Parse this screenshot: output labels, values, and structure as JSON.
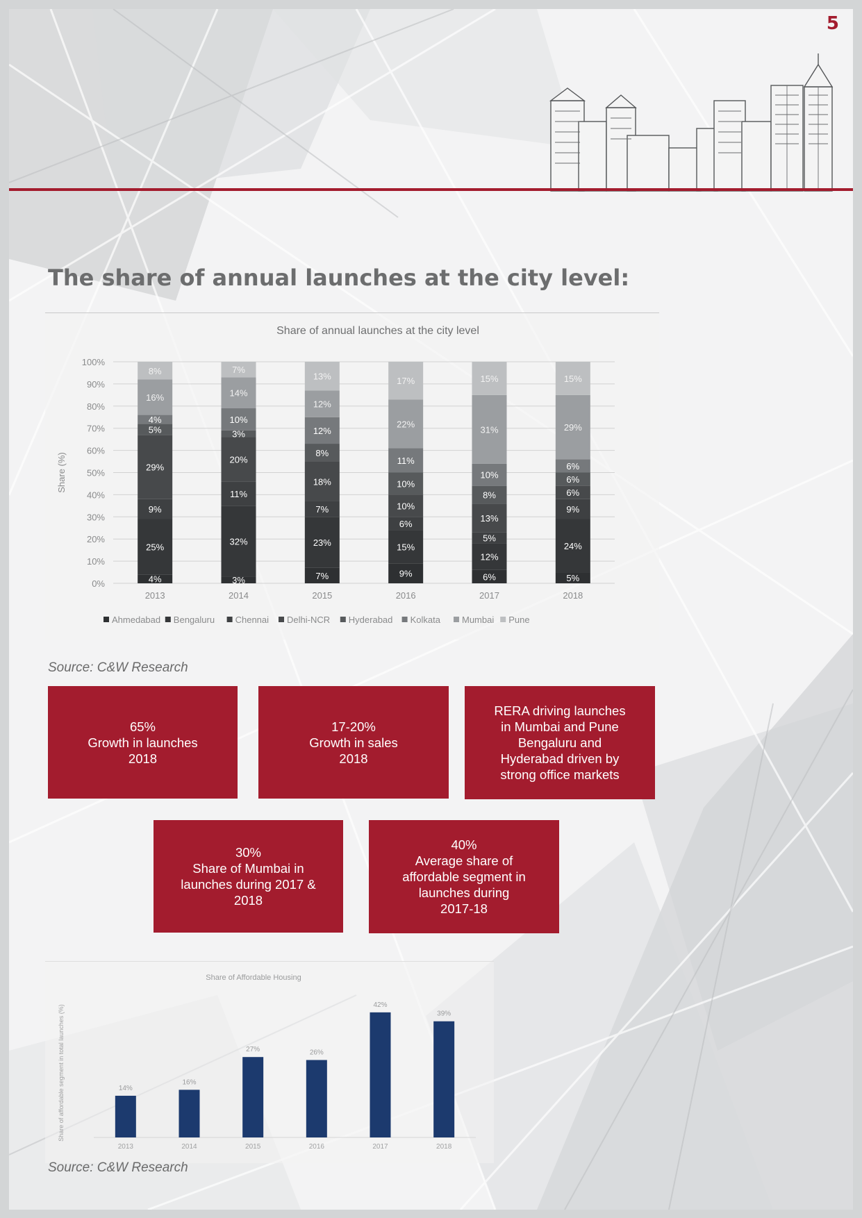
{
  "page": {
    "number": "5"
  },
  "heading": "The share of annual launches at the city level:",
  "source_1": "Source: C&W Research",
  "source_2": "Source: C&W Research",
  "highlights": [
    {
      "lines": [
        "65%",
        "Growth in launches",
        "2018"
      ]
    },
    {
      "lines": [
        "17-20%",
        "Growth in sales",
        "2018"
      ]
    },
    {
      "lines": [
        "RERA driving launches",
        "in Mumbai and Pune",
        "Bengaluru and",
        "Hyderabad driven by",
        "strong office markets"
      ]
    },
    {
      "lines": [
        "30%",
        "Share of Mumbai in",
        "launches during 2017 &",
        "2018"
      ]
    },
    {
      "lines": [
        "40%",
        "Average share of",
        "affordable segment in",
        "launches during",
        "2017-18"
      ]
    }
  ],
  "colors": {
    "accent": "#a31c2e",
    "bar_blue": "#1c3a6e"
  },
  "chart_data": [
    {
      "type": "bar",
      "stacked": true,
      "title": "Share of annual launches at the city level",
      "ylabel": "Share (%)",
      "ylim": [
        0,
        100
      ],
      "yticks": [
        "0%",
        "10%",
        "20%",
        "30%",
        "40%",
        "50%",
        "60%",
        "70%",
        "80%",
        "90%",
        "100%"
      ],
      "categories": [
        "2013",
        "2014",
        "2015",
        "2016",
        "2017",
        "2018"
      ],
      "legend_position": "bottom",
      "series": [
        {
          "name": "Ahmedabad",
          "values": [
            4,
            3,
            7,
            9,
            6,
            5
          ],
          "color": "#2e3032"
        },
        {
          "name": "Bengaluru",
          "values": [
            25,
            32,
            23,
            15,
            12,
            24
          ],
          "color": "#353739"
        },
        {
          "name": "Chennai",
          "values": [
            9,
            11,
            7,
            6,
            5,
            9
          ],
          "color": "#3e4042"
        },
        {
          "name": "Delhi-NCR",
          "values": [
            29,
            20,
            18,
            10,
            13,
            6
          ],
          "color": "#47494b"
        },
        {
          "name": "Hyderabad",
          "values": [
            5,
            3,
            8,
            10,
            8,
            6
          ],
          "color": "#575a5c"
        },
        {
          "name": "Kolkata",
          "values": [
            4,
            10,
            12,
            11,
            10,
            6
          ],
          "color": "#76797c"
        },
        {
          "name": "Mumbai",
          "values": [
            16,
            14,
            12,
            22,
            31,
            29
          ],
          "color": "#9b9ea1"
        },
        {
          "name": "Pune",
          "values": [
            8,
            7,
            13,
            17,
            15,
            15
          ],
          "color": "#bdbfc1"
        }
      ],
      "labels": [
        [
          "4%",
          "25%",
          "9%",
          "29%",
          "5%",
          "4%",
          "16%",
          "8%"
        ],
        [
          "3%",
          "32%",
          "11%",
          "20%",
          "3%",
          "10%",
          "14%",
          "7%"
        ],
        [
          "7%",
          "23%",
          "7%",
          "18%",
          "8%",
          "12%",
          "12%",
          "13%"
        ],
        [
          "9%",
          "15%",
          "6%",
          "10%",
          "10%",
          "11%",
          "22%",
          "17%"
        ],
        [
          "6%",
          "12%",
          "5%",
          "13%",
          "8%",
          "10%",
          "31%",
          "15%"
        ],
        [
          "5%",
          "24%",
          "9%",
          "6%",
          "6%",
          "6%",
          "29%",
          "15%"
        ]
      ]
    },
    {
      "type": "bar",
      "title": "Share of Affordable Housing",
      "ylabel": "Share of affordable segment in total launches (%)",
      "categories": [
        "2013",
        "2014",
        "2015",
        "2016",
        "2017",
        "2018"
      ],
      "values": [
        14,
        16,
        27,
        26,
        42,
        39
      ],
      "value_labels": [
        "14%",
        "16%",
        "27%",
        "26%",
        "42%",
        "39%"
      ],
      "ylim": [
        0,
        45
      ]
    }
  ]
}
